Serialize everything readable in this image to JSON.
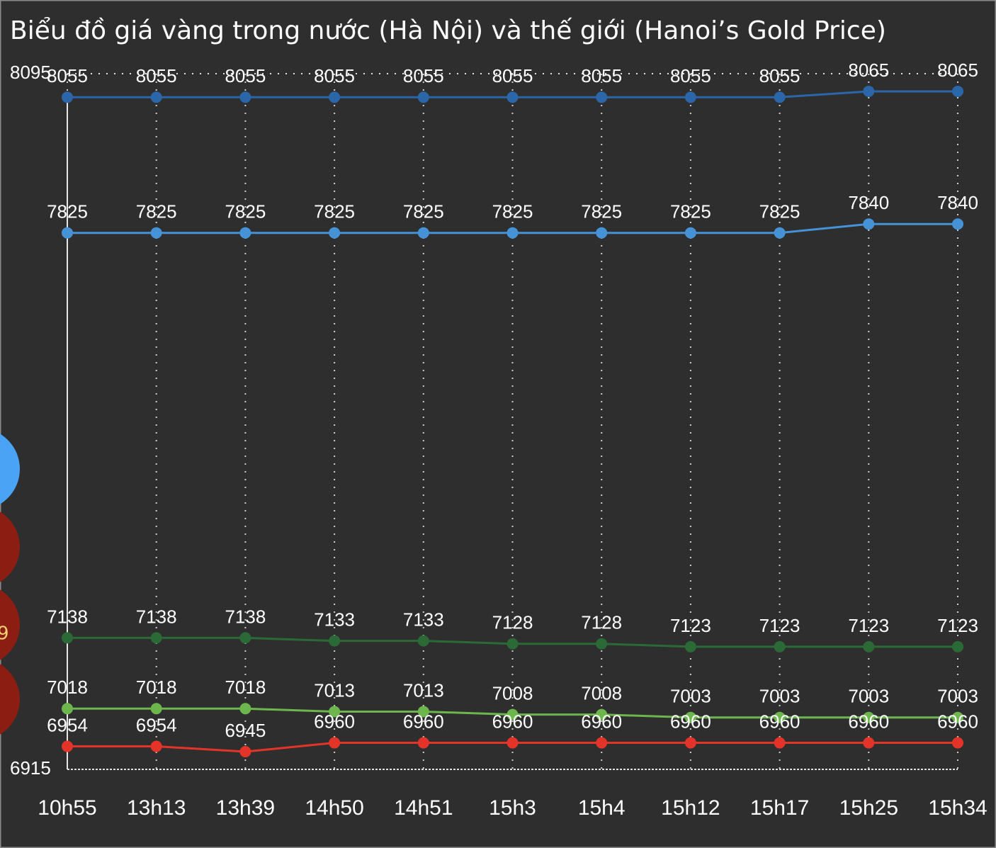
{
  "chart_data": {
    "type": "line",
    "title": "Biểu đồ giá vàng trong nước (Hà Nội) và thế giới (Hanoi’s Gold Price)",
    "categories": [
      "10h55",
      "13h13",
      "13h39",
      "14h50",
      "14h51",
      "15h3",
      "15h4",
      "15h12",
      "15h17",
      "15h25",
      "15h34"
    ],
    "series": [
      {
        "color": "#2a66a8",
        "values": [
          8055,
          8055,
          8055,
          8055,
          8055,
          8055,
          8055,
          8055,
          8055,
          8065,
          8065
        ]
      },
      {
        "color": "#4592d6",
        "values": [
          7825,
          7825,
          7825,
          7825,
          7825,
          7825,
          7825,
          7825,
          7825,
          7840,
          7840
        ]
      },
      {
        "color": "#2b6a36",
        "values": [
          7138,
          7138,
          7138,
          7133,
          7133,
          7128,
          7128,
          7123,
          7123,
          7123,
          7123
        ]
      },
      {
        "color": "#6db64e",
        "values": [
          7018,
          7018,
          7018,
          7013,
          7013,
          7008,
          7008,
          7003,
          7003,
          7003,
          7003
        ]
      },
      {
        "color": "#e4342a",
        "values": [
          6954,
          6954,
          6945,
          6960,
          6960,
          6960,
          6960,
          6960,
          6960,
          6960,
          6960
        ]
      }
    ],
    "ylim": [
      6915,
      8095
    ],
    "yticks": [
      6915,
      8095
    ],
    "grid": true
  },
  "side_badge_text": "9"
}
